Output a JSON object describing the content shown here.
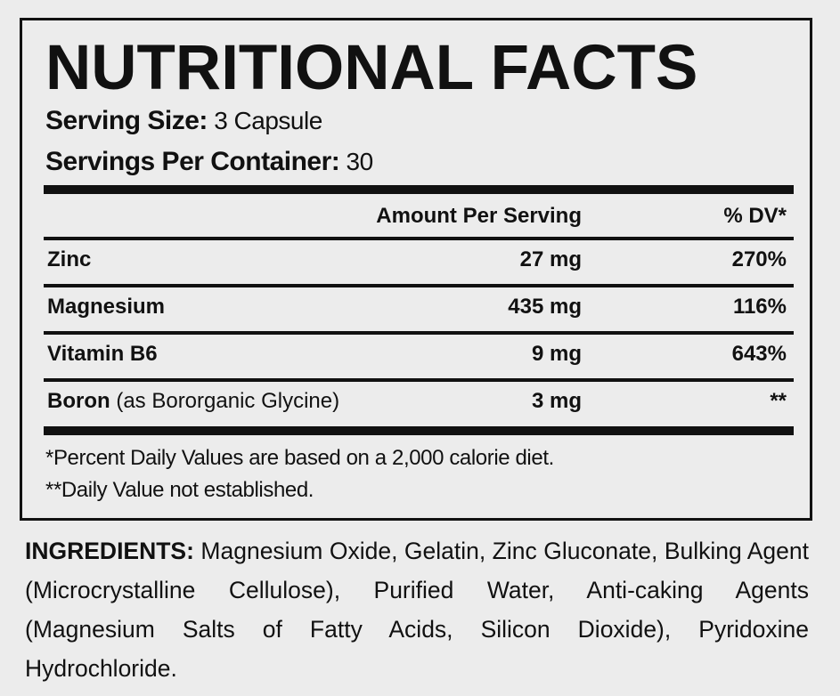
{
  "panel": {
    "title": "NUTRITIONAL FACTS",
    "serving_size": {
      "label": "Serving Size:",
      "value": "3 Capsule"
    },
    "servings_per_container": {
      "label": "Servings Per Container:",
      "value": "30"
    },
    "table": {
      "header": [
        "Amount Per Serving",
        "% DV*"
      ],
      "rows": [
        {
          "name": "Zinc",
          "amount": "27 mg",
          "dv": "270%"
        },
        {
          "name": "Magnesium",
          "amount": "435 mg",
          "dv": "116%"
        },
        {
          "name": "Vitamin B6",
          "amount": "9 mg",
          "dv": "643%"
        },
        {
          "name": "Boron",
          "note": "(as Bororganic Glycine)",
          "amount": "3 mg",
          "dv": "**"
        }
      ]
    },
    "footnotes": [
      "*Percent Daily Values are based on a 2,000 calorie diet.",
      "**Daily Value not established."
    ]
  },
  "ingredients": {
    "label": "INGREDIENTS:",
    "text": "Magnesium Oxide, Gelatin, Zinc Gluconate, Bulking Agent (Microcrystalline Cellulose), Purified Water, Anti-caking Agents (Magnesium Salts of Fatty Acids, Silicon Dioxide), Pyridoxine Hydrochloride."
  }
}
